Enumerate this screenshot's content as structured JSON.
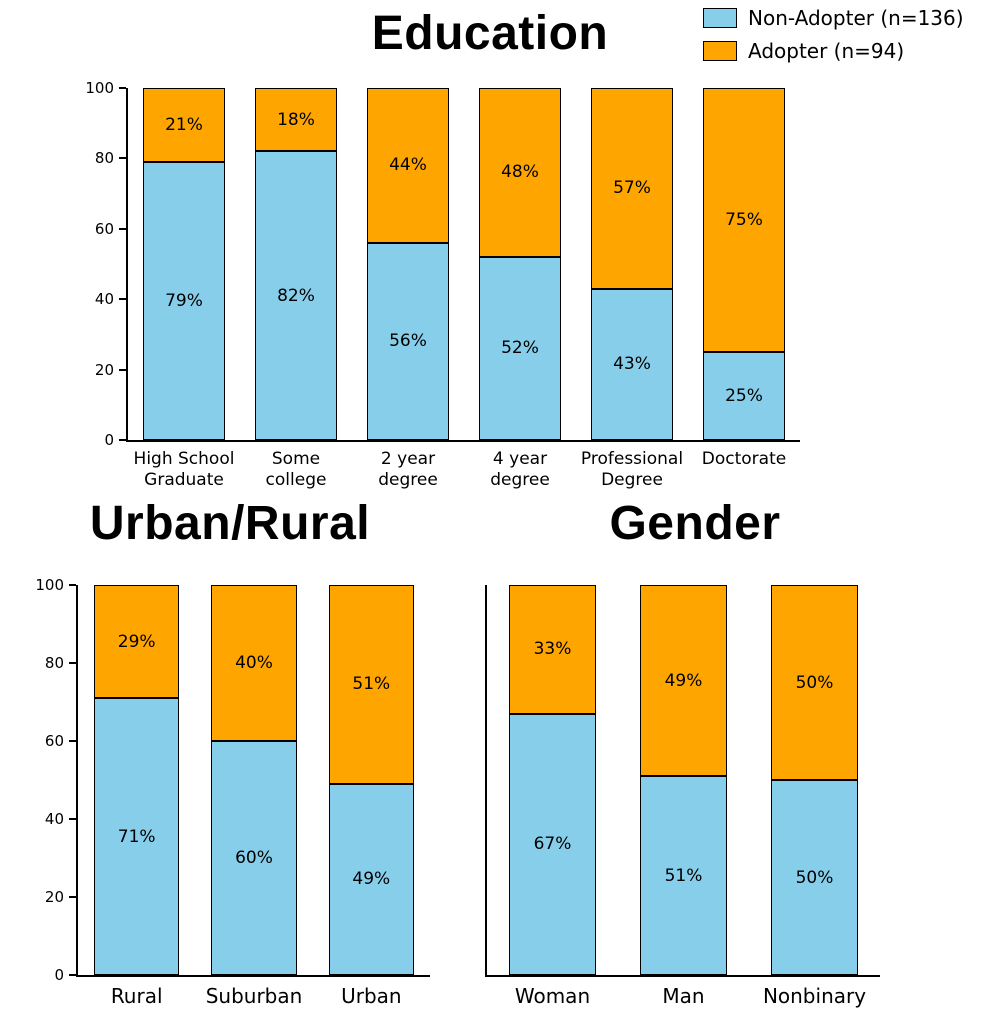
{
  "legend": {
    "items": [
      {
        "label": "Non-Adopter (n=136)",
        "color": "#87CEEB"
      },
      {
        "label": "Adopter (n=94)",
        "color": "#FFA500"
      }
    ]
  },
  "chart_data": [
    {
      "type": "bar",
      "stacked": true,
      "title": "Education",
      "categories": [
        "High School\nGraduate",
        "Some\ncollege",
        "2 year\ndegree",
        "4 year\ndegree",
        "Professional\nDegree",
        "Doctorate"
      ],
      "series": [
        {
          "name": "Non-Adopter (n=136)",
          "color": "#87CEEB",
          "values": [
            79,
            82,
            56,
            52,
            43,
            25
          ]
        },
        {
          "name": "Adopter (n=94)",
          "color": "#FFA500",
          "values": [
            21,
            18,
            44,
            48,
            57,
            75
          ]
        }
      ],
      "value_label_suffix": "%",
      "ylim": [
        0,
        100
      ],
      "yticks": [
        0,
        20,
        40,
        60,
        80,
        100
      ],
      "grid": false,
      "legend_position": "top-right"
    },
    {
      "type": "bar",
      "stacked": true,
      "title": "Urban/Rural",
      "categories": [
        "Rural",
        "Suburban",
        "Urban"
      ],
      "series": [
        {
          "name": "Non-Adopter (n=136)",
          "color": "#87CEEB",
          "values": [
            71,
            60,
            49
          ]
        },
        {
          "name": "Adopter (n=94)",
          "color": "#FFA500",
          "values": [
            29,
            40,
            51
          ]
        }
      ],
      "value_label_suffix": "%",
      "ylim": [
        0,
        100
      ],
      "yticks": [
        0,
        20,
        40,
        60,
        80,
        100
      ],
      "grid": false
    },
    {
      "type": "bar",
      "stacked": true,
      "title": "Gender",
      "categories": [
        "Woman",
        "Man",
        "Nonbinary"
      ],
      "series": [
        {
          "name": "Non-Adopter (n=136)",
          "color": "#87CEEB",
          "values": [
            67,
            51,
            50
          ]
        },
        {
          "name": "Adopter (n=94)",
          "color": "#FFA500",
          "values": [
            33,
            49,
            50
          ]
        }
      ],
      "value_label_suffix": "%",
      "ylim": [
        0,
        100
      ],
      "yticks": [
        0,
        20,
        40,
        60,
        80,
        100
      ],
      "grid": false
    }
  ]
}
